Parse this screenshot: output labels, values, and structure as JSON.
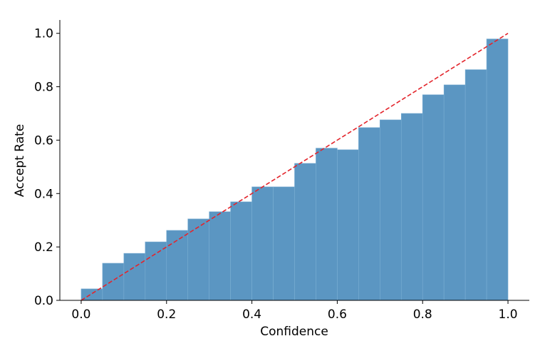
{
  "chart_data": {
    "type": "histogram",
    "x_label": "Confidence",
    "y_label": "Accept Rate",
    "bins": [
      0,
      0.05,
      0.1,
      0.15,
      0.2,
      0.25,
      0.3,
      0.35,
      0.4,
      0.45,
      0.5,
      0.55,
      0.6,
      0.65,
      0.7,
      0.75,
      0.8,
      0.85,
      0.9,
      0.95,
      1.0
    ],
    "values": [
      0.043,
      0.139,
      0.176,
      0.219,
      0.262,
      0.305,
      0.332,
      0.369,
      0.425,
      0.425,
      0.513,
      0.57,
      0.564,
      0.647,
      0.676,
      0.7,
      0.77,
      0.807,
      0.864,
      0.979
    ],
    "color": "#5b96c2",
    "diagonal": {
      "x": [
        0,
        1
      ],
      "y": [
        0,
        1
      ],
      "color": "#e3242b",
      "dashed": true
    },
    "xlim": [
      -0.05,
      1.05
    ],
    "ylim": [
      0,
      1.05
    ],
    "xticks": [
      {
        "value": 0,
        "label": "0.0"
      },
      {
        "value": 0.2,
        "label": "0.2"
      },
      {
        "value": 0.4,
        "label": "0.4"
      },
      {
        "value": 0.6,
        "label": "0.6"
      },
      {
        "value": 0.8,
        "label": "0.8"
      },
      {
        "value": 1.0,
        "label": "1.0"
      }
    ],
    "yticks": [
      {
        "value": 0,
        "label": "0.0"
      },
      {
        "value": 0.2,
        "label": "0.2"
      },
      {
        "value": 0.4,
        "label": "0.4"
      },
      {
        "value": 0.6,
        "label": "0.6"
      },
      {
        "value": 0.8,
        "label": "0.8"
      },
      {
        "value": 1.0,
        "label": "1.0"
      }
    ]
  }
}
